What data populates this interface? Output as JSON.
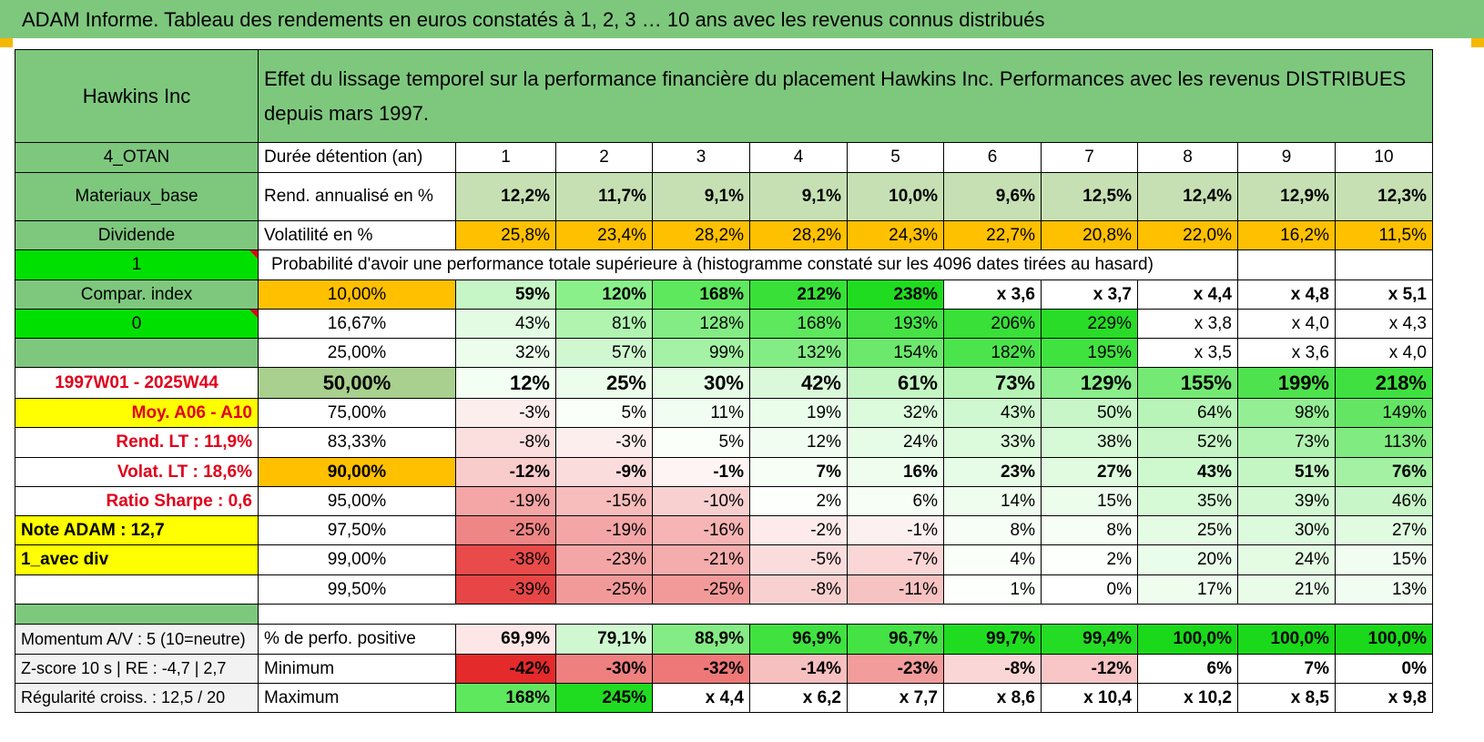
{
  "title": "ADAM Informe. Tableau des rendements en euros constatés à 1, 2, 3 … 10 ans avec les revenus connus distribués",
  "header": {
    "left": "Hawkins Inc",
    "right": "Effet du lissage temporel sur la performance financière du placement Hawkins Inc. Performances avec les revenus DISTRIBUES depuis mars 1997."
  },
  "colors": {
    "header_green": "#7ec87e",
    "bright_green": "#00e000",
    "orange": "#ffc000",
    "yellow": "#ffff00",
    "olive": "#a9d08e",
    "red_text": "#e0001b"
  },
  "rows": [
    {
      "left": "4_OTAN",
      "label": "Durée détention (an)",
      "values": [
        "1",
        "2",
        "3",
        "4",
        "5",
        "6",
        "7",
        "8",
        "9",
        "10"
      ]
    },
    {
      "left": "Materiaux_base",
      "label": "Rend. annualisé en %",
      "values": [
        "12,2%",
        "11,7%",
        "9,1%",
        "9,1%",
        "10,0%",
        "9,6%",
        "12,5%",
        "12,4%",
        "12,9%",
        "12,3%"
      ]
    },
    {
      "left": "Dividende",
      "label": "Volatilité en %",
      "values": [
        "25,8%",
        "23,4%",
        "28,2%",
        "28,2%",
        "24,3%",
        "22,7%",
        "20,8%",
        "22,0%",
        "16,2%",
        "11,5%"
      ]
    },
    {
      "left": "1",
      "label": "Probabilité d'avoir une performance totale supérieure à (histogramme constaté sur les 4096 dates tirées au hasard)"
    },
    {
      "left": "Compar. index",
      "label": "10,00%",
      "values": [
        "59%",
        "120%",
        "168%",
        "212%",
        "238%",
        "x 3,6",
        "x 3,7",
        "x 4,4",
        "x 4,8",
        "x 5,1"
      ]
    },
    {
      "left": "0",
      "label": "16,67%",
      "values": [
        "43%",
        "81%",
        "128%",
        "168%",
        "193%",
        "206%",
        "229%",
        "x 3,8",
        "x 4,0",
        "x 4,3"
      ]
    },
    {
      "left": "",
      "label": "25,00%",
      "values": [
        "32%",
        "57%",
        "99%",
        "132%",
        "154%",
        "182%",
        "195%",
        "x 3,5",
        "x 3,6",
        "x 4,0"
      ]
    },
    {
      "left": "1997W01 - 2025W44",
      "label": "50,00%",
      "values": [
        "12%",
        "25%",
        "30%",
        "42%",
        "61%",
        "73%",
        "129%",
        "155%",
        "199%",
        "218%"
      ]
    },
    {
      "left": "Moy. A06 - A10",
      "label": "75,00%",
      "values": [
        "-3%",
        "5%",
        "11%",
        "19%",
        "32%",
        "43%",
        "50%",
        "64%",
        "98%",
        "149%"
      ]
    },
    {
      "left": "Rend. LT :    11,9%",
      "label": "83,33%",
      "values": [
        "-8%",
        "-3%",
        "5%",
        "12%",
        "24%",
        "33%",
        "38%",
        "52%",
        "73%",
        "113%"
      ]
    },
    {
      "left": "Volat. LT :    18,6%",
      "label": "90,00%",
      "values": [
        "-12%",
        "-9%",
        "-1%",
        "7%",
        "16%",
        "23%",
        "27%",
        "43%",
        "51%",
        "76%"
      ]
    },
    {
      "left": "Ratio Sharpe :     0,6",
      "label": "95,00%",
      "values": [
        "-19%",
        "-15%",
        "-10%",
        "2%",
        "6%",
        "14%",
        "15%",
        "35%",
        "39%",
        "46%"
      ]
    },
    {
      "left": "Note ADAM : 12,7",
      "label": "97,50%",
      "values": [
        "-25%",
        "-19%",
        "-16%",
        "-2%",
        "-1%",
        "8%",
        "8%",
        "25%",
        "30%",
        "27%"
      ]
    },
    {
      "left": "1_avec div",
      "label": "99,00%",
      "values": [
        "-38%",
        "-23%",
        "-21%",
        "-5%",
        "-7%",
        "4%",
        "2%",
        "20%",
        "24%",
        "15%"
      ]
    },
    {
      "left": "",
      "label": "99,50%",
      "values": [
        "-39%",
        "-25%",
        "-25%",
        "-8%",
        "-11%",
        "1%",
        "0%",
        "17%",
        "21%",
        "13%"
      ]
    },
    {
      "left": "Momentum A/V : 5 (10=neutre)",
      "label": "% de perfo. positive",
      "values": [
        "69,9%",
        "79,1%",
        "88,9%",
        "96,9%",
        "96,7%",
        "99,7%",
        "99,4%",
        "100,0%",
        "100,0%",
        "100,0%"
      ]
    },
    {
      "left": "Z-score 10 s | RE : -4,7 | 2,7",
      "label": "Minimum",
      "values": [
        "-42%",
        "-30%",
        "-32%",
        "-14%",
        "-23%",
        "-8%",
        "-12%",
        "6%",
        "7%",
        "0%"
      ]
    },
    {
      "left": "Régularité croiss. : 12,5 / 20",
      "label": "Maximum",
      "values": [
        "168%",
        "245%",
        "x 4,4",
        "x 6,2",
        "x 7,7",
        "x 8,6",
        "x 10,4",
        "x 10,2",
        "x 8,5",
        "x 9,8"
      ]
    }
  ]
}
